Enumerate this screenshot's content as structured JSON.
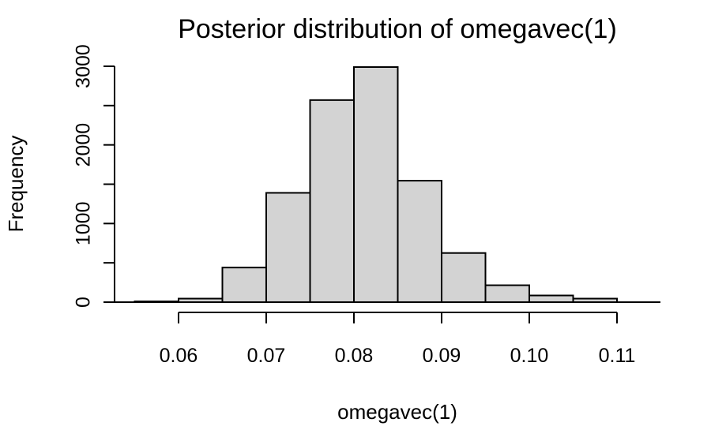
{
  "chart_data": {
    "type": "bar",
    "title": "Posterior distribution of omegavec(1)",
    "xlabel": "omegavec(1)",
    "ylabel": "Frequency",
    "bin_edges": [
      0.055,
      0.06,
      0.065,
      0.07,
      0.075,
      0.08,
      0.085,
      0.09,
      0.095,
      0.1,
      0.105,
      0.11
    ],
    "values": [
      10,
      45,
      440,
      1390,
      2570,
      2990,
      1545,
      625,
      215,
      85,
      45
    ],
    "xlim": [
      0.055,
      0.11
    ],
    "ylim": [
      0,
      3000
    ],
    "x_ticks": [
      0.06,
      0.07,
      0.08,
      0.09,
      0.1,
      0.11
    ],
    "x_tick_labels": [
      "0.06",
      "0.07",
      "0.08",
      "0.09",
      "0.10",
      "0.11"
    ],
    "y_ticks": [
      0,
      500,
      1000,
      1500,
      2000,
      2500,
      3000
    ],
    "y_tick_labels": [
      "0",
      "1000",
      "2000",
      "3000"
    ],
    "y_labeled_ticks": [
      0,
      1000,
      2000,
      3000
    ],
    "bar_fill": "#d3d3d3",
    "bar_stroke": "#000000",
    "grid": false,
    "legend": "none"
  }
}
